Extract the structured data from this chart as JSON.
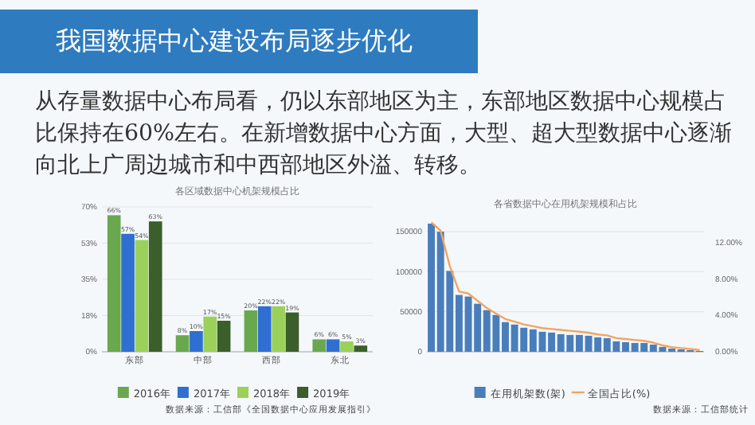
{
  "chart_data": [
    {
      "type": "other",
      "title": "我国数据中心建设布局逐步优化",
      "annotations": [
        "从存量数据中心布局看，仍以东部地区为主，东部地区数据中心规模占比保持在60%左右。在新增数据中心方面，大型、超大型数据中心逐渐向北上广周边城市和中西部地区外溢、转移。"
      ]
    },
    {
      "type": "bar",
      "title": "各区域数据中心机架规模占比",
      "categories": [
        "东部",
        "中部",
        "西部",
        "东北"
      ],
      "series": [
        {
          "name": "2016年",
          "color": "#6aa84f",
          "values": [
            66,
            8,
            20,
            6
          ],
          "value_labels": [
            "66%",
            "8%",
            "20%",
            "6%"
          ]
        },
        {
          "name": "2017年",
          "color": "#2f6fd1",
          "values": [
            57,
            10,
            22,
            6
          ],
          "value_labels": [
            "57%",
            "10%",
            "22%",
            "6%"
          ]
        },
        {
          "name": "2018年",
          "color": "#9bd15a",
          "values": [
            54,
            17,
            22,
            5
          ],
          "value_labels": [
            "54%",
            "17%",
            "22%",
            "5%"
          ]
        },
        {
          "name": "2019年",
          "color": "#3b5e2b",
          "values": [
            63,
            15,
            19,
            3
          ],
          "value_labels": [
            "63%",
            "15%",
            "19%",
            "3%"
          ]
        }
      ],
      "ylim": [
        0,
        70
      ],
      "yticks": [
        {
          "value": 0,
          "label": "0%"
        },
        {
          "value": 17.5,
          "label": "18%"
        },
        {
          "value": 35,
          "label": "35%"
        },
        {
          "value": 52.5,
          "label": "53%"
        },
        {
          "value": 70,
          "label": "70%"
        }
      ],
      "grid": "y",
      "legend": "bottom",
      "annotations": [
        "数据来源：工信部《全国数据中心应用发展指引》"
      ]
    },
    {
      "type": "bar",
      "title": "各省数据中心在用机架规模和占比",
      "categories": [
        null,
        null,
        null,
        null,
        null,
        null,
        null,
        null,
        null,
        null,
        null,
        null,
        null,
        null,
        null,
        null,
        null,
        null,
        null,
        null,
        null,
        null,
        null,
        null,
        null,
        null,
        null,
        null,
        null,
        null
      ],
      "series": [
        {
          "name": "在用机架数(架)",
          "color": "#4a7ebb",
          "values": [
            160000,
            150000,
            101000,
            71000,
            69000,
            60000,
            52000,
            46000,
            37000,
            34000,
            30000,
            28000,
            25000,
            24000,
            22000,
            21000,
            21000,
            20000,
            18000,
            17000,
            13000,
            12000,
            11000,
            11000,
            9000,
            6000,
            4000,
            3000,
            2000,
            1000
          ]
        },
        {
          "name": "全国占比(%)",
          "type": "line",
          "axis": "y2",
          "color": "#f4a460",
          "values": [
            14.2,
            13.3,
            9.4,
            6.6,
            6.4,
            5.6,
            4.8,
            4.2,
            3.6,
            3.3,
            3.0,
            2.8,
            2.6,
            2.5,
            2.4,
            2.3,
            2.2,
            2.1,
            1.9,
            1.8,
            1.5,
            1.4,
            1.3,
            1.2,
            1.0,
            0.7,
            0.5,
            0.4,
            0.3,
            0.2
          ]
        }
      ],
      "ylim": [
        0,
        165000
      ],
      "yticks": [
        0,
        50000,
        100000,
        150000
      ],
      "y2lim": [
        0,
        14.5
      ],
      "y2ticks": [
        {
          "value": 0,
          "label": "0.00%"
        },
        {
          "value": 4,
          "label": "4.00%"
        },
        {
          "value": 8,
          "label": "8.00%"
        },
        {
          "value": 12,
          "label": "12.00%"
        }
      ],
      "grid": "y",
      "legend": "bottom",
      "annotations": [
        "数据来源：工信部统计"
      ]
    }
  ]
}
